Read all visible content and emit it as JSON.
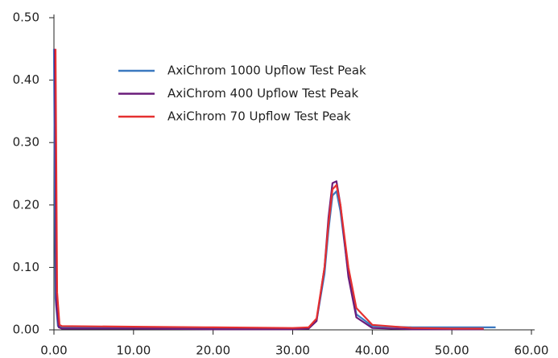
{
  "chart_data": {
    "type": "line",
    "xlim": [
      0,
      60
    ],
    "xticks": [
      {
        "value": 0,
        "label": "0.00"
      },
      {
        "value": 10,
        "label": "10.00"
      },
      {
        "value": 20,
        "label": "20.00"
      },
      {
        "value": 30,
        "label": "30.00"
      },
      {
        "value": 40,
        "label": "40.00"
      },
      {
        "value": 50,
        "label": "50.00"
      },
      {
        "value": 60,
        "label": "60.00"
      }
    ],
    "ylim": [
      0,
      0.5
    ],
    "yticks": [
      {
        "value": 0,
        "label": "0.00"
      },
      {
        "value": 0.1,
        "label": "0.10"
      },
      {
        "value": 0.2,
        "label": "0.20"
      },
      {
        "value": 0.3,
        "label": "0.30"
      },
      {
        "value": 0.4,
        "label": "0.40"
      },
      {
        "value": 0.5,
        "label": "0.50"
      }
    ],
    "series": [
      {
        "name": "AxiChrom 1000 Upflow Test Peak",
        "color": "#3a78c0",
        "x": [
          0,
          0.2,
          0.5,
          1,
          10,
          20,
          30,
          32,
          33,
          34,
          34.5,
          35,
          35.5,
          36,
          37,
          38,
          40,
          45,
          50,
          55.5
        ],
        "values": [
          0.45,
          0.05,
          0.006,
          0.004,
          0.003,
          0.002,
          0.002,
          0.003,
          0.015,
          0.09,
          0.16,
          0.215,
          0.222,
          0.19,
          0.09,
          0.025,
          0.006,
          0.004,
          0.004,
          0.004
        ]
      },
      {
        "name": "AxiChrom 400 Upflow Test Peak",
        "color": "#6a1b7a",
        "x": [
          0.1,
          0.3,
          0.6,
          1,
          10,
          20,
          30,
          32,
          33,
          34,
          34.5,
          35,
          35.5,
          36,
          37,
          38,
          40,
          45,
          50,
          54
        ],
        "values": [
          0.45,
          0.04,
          0.004,
          0.002,
          0.002,
          0.001,
          0.001,
          0.002,
          0.014,
          0.1,
          0.18,
          0.235,
          0.238,
          0.2,
          0.085,
          0.02,
          0.003,
          0.001,
          0.001,
          0.001
        ]
      },
      {
        "name": "AxiChrom 70 Upflow Test Peak",
        "color": "#e53030",
        "x": [
          0.2,
          0.4,
          0.7,
          1,
          10,
          20,
          30,
          32,
          33,
          34,
          34.5,
          35,
          35.5,
          36,
          37,
          38,
          40,
          45,
          50,
          54
        ],
        "values": [
          0.45,
          0.06,
          0.008,
          0.006,
          0.005,
          0.004,
          0.003,
          0.004,
          0.018,
          0.1,
          0.17,
          0.225,
          0.232,
          0.2,
          0.1,
          0.035,
          0.008,
          0.003,
          0.002,
          0.002
        ]
      }
    ]
  }
}
